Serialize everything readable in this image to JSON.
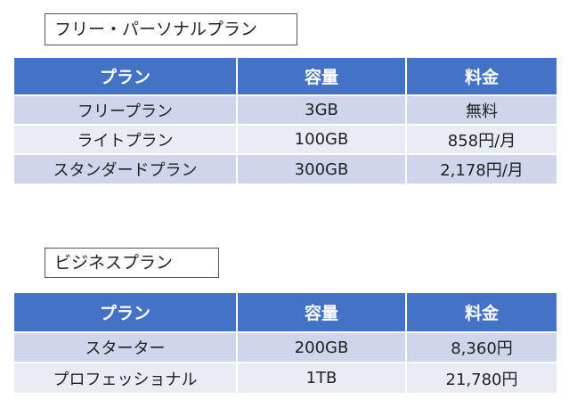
{
  "personal": {
    "title": "フリー・パーソナルプラン",
    "headers": [
      "プラン",
      "容量",
      "料金"
    ],
    "rows": [
      [
        "フリープラン",
        "3GB",
        "無料"
      ],
      [
        "ライトプラン",
        "100GB",
        "858円/月"
      ],
      [
        "スタンダードプラン",
        "300GB",
        "2,178円/月"
      ]
    ]
  },
  "business": {
    "title": "ビジネスプラン",
    "headers": [
      "プラン",
      "容量",
      "料金"
    ],
    "rows": [
      [
        "スターター",
        "200GB",
        "8,360円"
      ],
      [
        "プロフェッショナル",
        "1TB",
        "21,780円"
      ]
    ]
  },
  "colors": {
    "header_bg": "#4472c4",
    "row_band_dark": "#cfd5ea",
    "row_band_light": "#e9ebf5"
  }
}
